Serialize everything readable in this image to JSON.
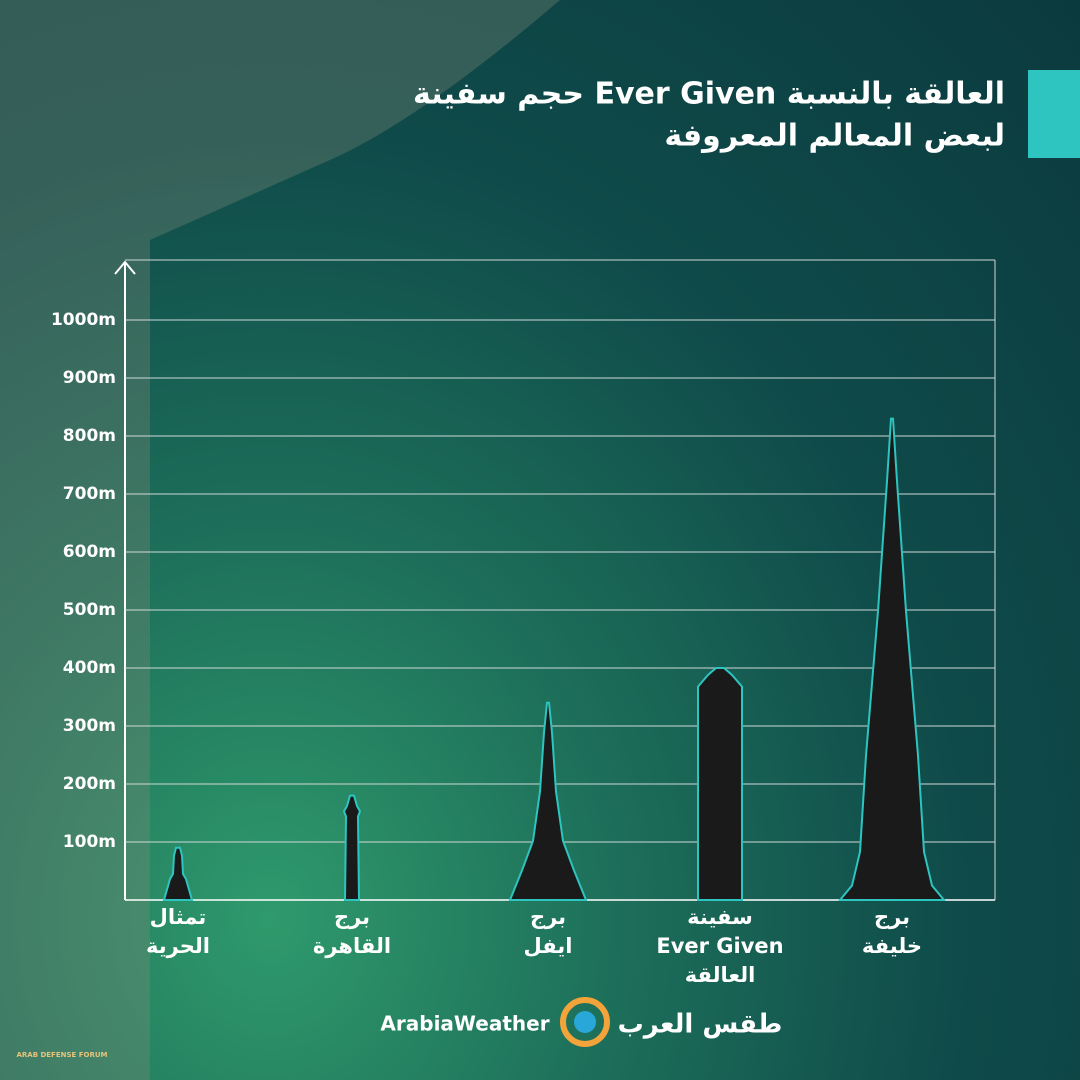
{
  "header": {
    "title_lines": [
      "حجم سفينة Ever Given العالقة بالنسبة",
      "لبعض المعالم المعروفة"
    ]
  },
  "chart_data": {
    "type": "bar",
    "categories": [
      [
        "تمثال",
        "الحرية"
      ],
      [
        "برج",
        "القاهرة"
      ],
      [
        "برج",
        "ايفل"
      ],
      [
        "سفينة",
        "Ever Given",
        "العالقة"
      ],
      [
        "برج",
        "خليفة"
      ]
    ],
    "values": [
      90,
      180,
      340,
      400,
      830
    ],
    "color": "#1a1a1a",
    "edge_color": "#2ec4c0",
    "ylim": [
      0,
      1100
    ],
    "yticks": [
      {
        "value": 100,
        "label": "100m"
      },
      {
        "value": 200,
        "label": "200m"
      },
      {
        "value": 300,
        "label": "300m"
      },
      {
        "value": 400,
        "label": "400m"
      },
      {
        "value": 500,
        "label": "500m"
      },
      {
        "value": 600,
        "label": "600m"
      },
      {
        "value": 700,
        "label": "700m"
      },
      {
        "value": 800,
        "label": "800m"
      },
      {
        "value": 900,
        "label": "900m"
      },
      {
        "value": 1000,
        "label": "1000m"
      }
    ],
    "grid": true
  },
  "footer": {
    "brand_latin": "ArabiaWeather",
    "brand_arabic": "طقس العرب",
    "watermark": "ARAB DEFENSE FORUM"
  }
}
